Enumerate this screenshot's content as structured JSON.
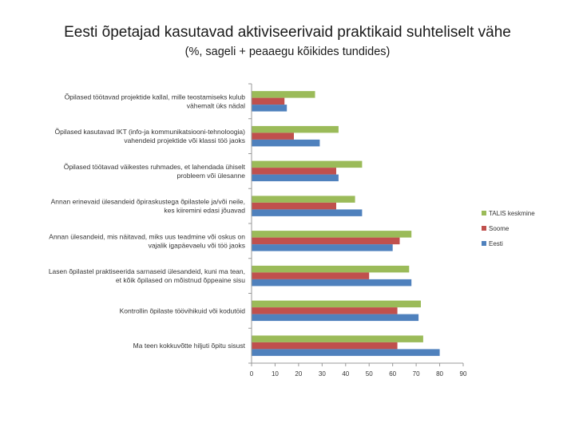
{
  "title": "Eesti õpetajad kasutavad aktiviseerivaid praktikaid suhteliselt vähe",
  "subtitle": "(%, sageli + peaaegu kõikides tundides)",
  "chart_data": {
    "type": "bar",
    "orientation": "horizontal",
    "categories": [
      [
        "Õpilased töötavad projektide kallal, mille teostamiseks kulub",
        "vähemalt üks nädal"
      ],
      [
        "Õpilased kasutavad IKT (info-ja kommunikatsiooni-tehnoloogia)",
        "vahendeid projektide või klassi töö jaoks"
      ],
      [
        "Õpilased töötavad väikestes ruhmades, et lahendada ühiselt",
        "probleem või ülesanne"
      ],
      [
        "Annan erinevaid ülesandeid õpiraskustega õpilastele ja/või neile,",
        "kes kiiremini edasi jõuavad"
      ],
      [
        "Annan ülesandeid, mis näitavad, miks uus teadmine või oskus on",
        "vajalik igapäevaelu või töö jaoks"
      ],
      [
        "Lasen õpilastel praktiseerida sarnaseid ülesandeid, kuni ma tean,",
        "et kõik õpilased on mõistnud õppeaine sisu"
      ],
      [
        "Kontrollin õpilaste töövihikuid või kodutöid"
      ],
      [
        "Ma teen kokkuvõtte hiljuti õpitu sisust"
      ]
    ],
    "series": [
      {
        "name": "TALIS keskmine",
        "color": "#9bbb59",
        "values": [
          27,
          37,
          47,
          44,
          68,
          67,
          72,
          73
        ]
      },
      {
        "name": "Soome",
        "color": "#c0504d",
        "values": [
          14,
          18,
          36,
          36,
          63,
          50,
          62,
          62
        ]
      },
      {
        "name": "Eesti",
        "color": "#4f81bd",
        "values": [
          15,
          29,
          37,
          47,
          60,
          68,
          71,
          80
        ]
      }
    ],
    "xlim": [
      0,
      90
    ],
    "xticks": [
      0,
      10,
      20,
      30,
      40,
      50,
      60,
      70,
      80,
      90
    ],
    "grid": false,
    "legend_placement": "right"
  }
}
